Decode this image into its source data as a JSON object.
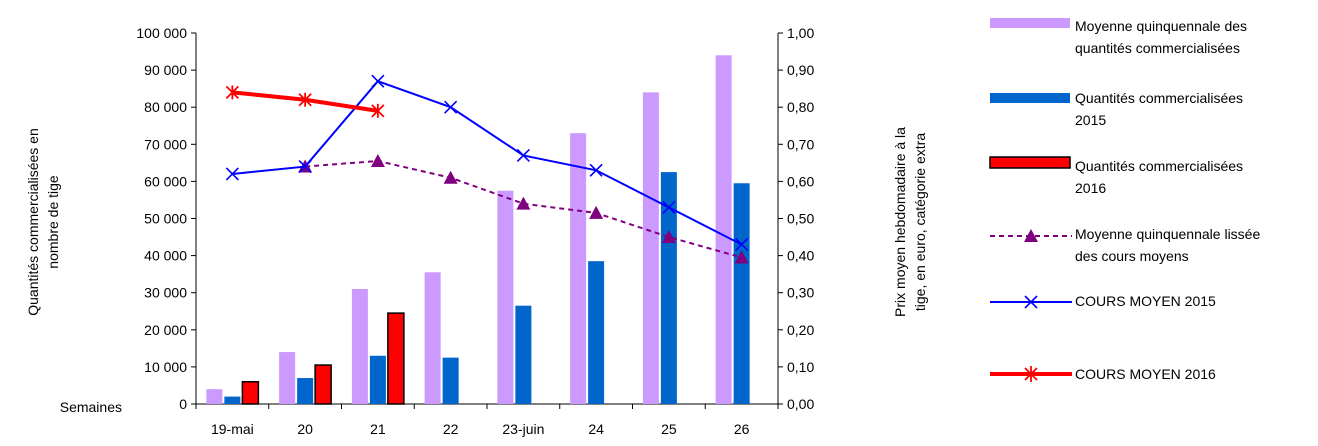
{
  "chart_data": {
    "type": "bar",
    "categories": [
      "19-mai",
      "20",
      "21",
      "22",
      "23-juin",
      "24",
      "25",
      "26"
    ],
    "xlabel": "Semaines",
    "ylabel": "Quantités commercialisées en nombre de tige",
    "y2label": "Prix moyen hebdomadaire à la tige, en euro, catégorie extra",
    "ylim": [
      0,
      100000
    ],
    "y2lim": [
      0,
      1.0
    ],
    "yticks": [
      "0",
      "10 000",
      "20 000",
      "30 000",
      "40 000",
      "50 000",
      "60 000",
      "70 000",
      "80 000",
      "90 000",
      "100 000"
    ],
    "y2ticks": [
      "0,00",
      "0,10",
      "0,20",
      "0,30",
      "0,40",
      "0,50",
      "0,60",
      "0,70",
      "0,80",
      "0,90",
      "1,00"
    ],
    "bar_series": [
      {
        "name": "Moyenne quinquennale des quantités commercialisées",
        "color": "#cc99ff",
        "values": [
          4000,
          14000,
          31000,
          35500,
          57500,
          73000,
          84000,
          94000
        ]
      },
      {
        "name": "Quantités commercialisées 2015",
        "color": "#0066cc",
        "values": [
          2000,
          7000,
          13000,
          12500,
          26500,
          38500,
          62500,
          59500
        ]
      },
      {
        "name": "Quantités commercialisées 2016",
        "color": "#ff0000",
        "values": [
          6000,
          10500,
          24500,
          null,
          null,
          null,
          null,
          null
        ]
      }
    ],
    "line_series": [
      {
        "name": "Moyenne quinquennale lissée des cours moyens",
        "color": "#800080",
        "values": [
          null,
          0.64,
          0.655,
          0.61,
          0.54,
          0.515,
          0.45,
          0.395
        ]
      },
      {
        "name": "COURS MOYEN 2015",
        "color": "#0000ff",
        "values": [
          0.62,
          0.64,
          0.87,
          0.8,
          0.67,
          0.63,
          0.53,
          0.43
        ]
      },
      {
        "name": "COURS MOYEN 2016",
        "color": "#ff0000",
        "values": [
          0.84,
          0.82,
          0.79,
          null,
          null,
          null,
          null,
          null
        ]
      }
    ],
    "grid": false,
    "legend_position": "right"
  }
}
